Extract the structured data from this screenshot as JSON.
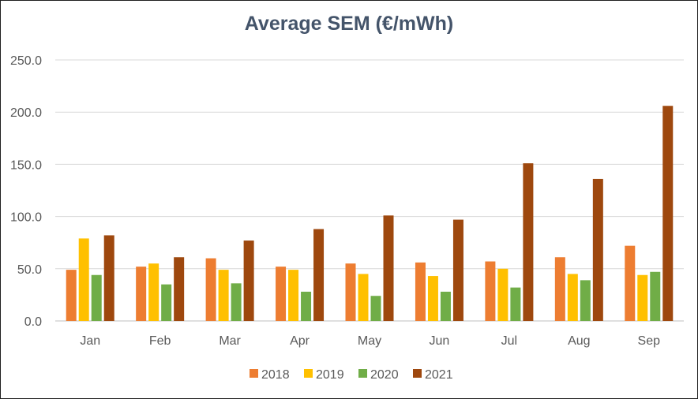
{
  "chart_data": {
    "type": "bar",
    "title": "Average SEM (€/mWh)",
    "xlabel": "",
    "ylabel": "",
    "ylim": [
      0,
      250
    ],
    "yticks": [
      "0.0",
      "50.0",
      "100.0",
      "150.0",
      "200.0",
      "250.0"
    ],
    "grid": true,
    "legend_position": "bottom",
    "categories": [
      "Jan",
      "Feb",
      "Mar",
      "Apr",
      "May",
      "Jun",
      "Jul",
      "Aug",
      "Sep"
    ],
    "series": [
      {
        "name": "2018",
        "color": "#ed7d31",
        "values": [
          49,
          52,
          60,
          52,
          55,
          56,
          57,
          61,
          72
        ]
      },
      {
        "name": "2019",
        "color": "#ffc000",
        "values": [
          79,
          55,
          49,
          49,
          45,
          43,
          50,
          45,
          44
        ]
      },
      {
        "name": "2020",
        "color": "#70ad47",
        "values": [
          44,
          35,
          36,
          28,
          24,
          28,
          32,
          39,
          47
        ]
      },
      {
        "name": "2021",
        "color": "#9e480e",
        "values": [
          82,
          61,
          77,
          88,
          101,
          97,
          151,
          136,
          206
        ]
      }
    ]
  }
}
